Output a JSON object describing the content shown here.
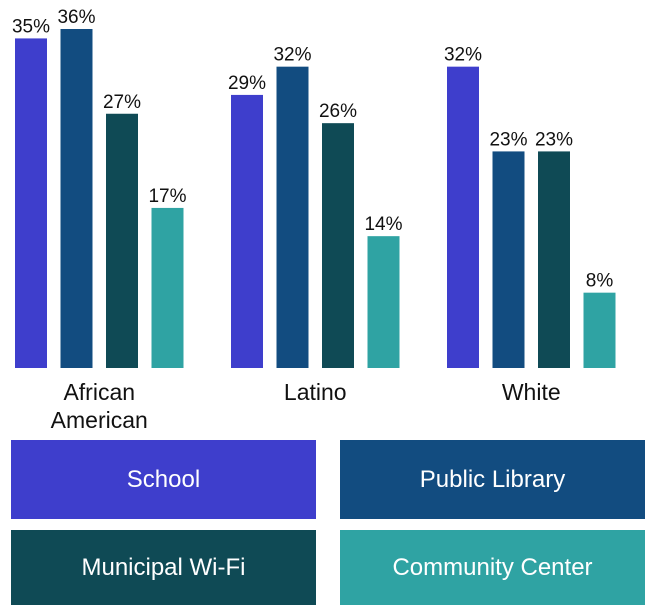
{
  "chart_data": {
    "type": "bar",
    "categories": [
      "African American",
      "Latino",
      "White"
    ],
    "series": [
      {
        "name": "School",
        "color": "#3e3ecc",
        "values": [
          35,
          29,
          32
        ],
        "value_labels": [
          "35%",
          "29%",
          "32%"
        ]
      },
      {
        "name": "Public Library",
        "color": "#124c80",
        "values": [
          36,
          32,
          23
        ],
        "value_labels": [
          "36%",
          "32%",
          "23%"
        ]
      },
      {
        "name": "Municipal Wi-Fi",
        "color": "#0f4a55",
        "values": [
          27,
          26,
          23
        ],
        "value_labels": [
          "27%",
          "26%",
          "23%"
        ]
      },
      {
        "name": "Community Center",
        "color": "#2fa3a3",
        "values": [
          17,
          14,
          8
        ],
        "value_labels": [
          "17%",
          "14%",
          "8%"
        ]
      }
    ]
  }
}
